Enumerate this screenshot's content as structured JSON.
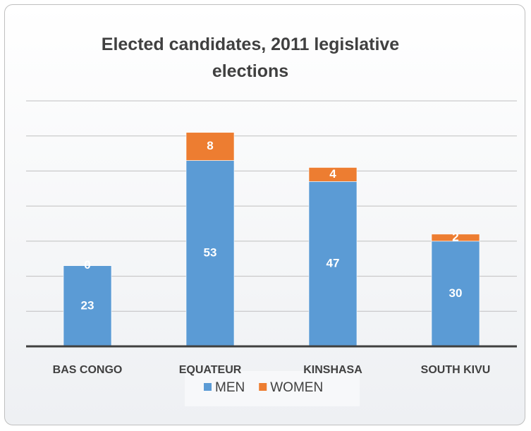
{
  "chart_data": {
    "type": "bar",
    "stacked": true,
    "title": "Elected candidates, 2011 legislative elections",
    "categories": [
      "BAS CONGO",
      "EQUATEUR",
      "KINSHASA",
      "SOUTH KIVU"
    ],
    "series": [
      {
        "name": "MEN",
        "color": "#5b9bd5",
        "values": [
          23,
          53,
          47,
          30
        ]
      },
      {
        "name": "WOMEN",
        "color": "#ed7d31",
        "values": [
          0,
          8,
          4,
          2
        ]
      }
    ],
    "ylim": [
      0,
      70
    ],
    "yticks": [
      0,
      10,
      20,
      30,
      40,
      50,
      60,
      70
    ],
    "grid": true,
    "legend": "bottom"
  }
}
